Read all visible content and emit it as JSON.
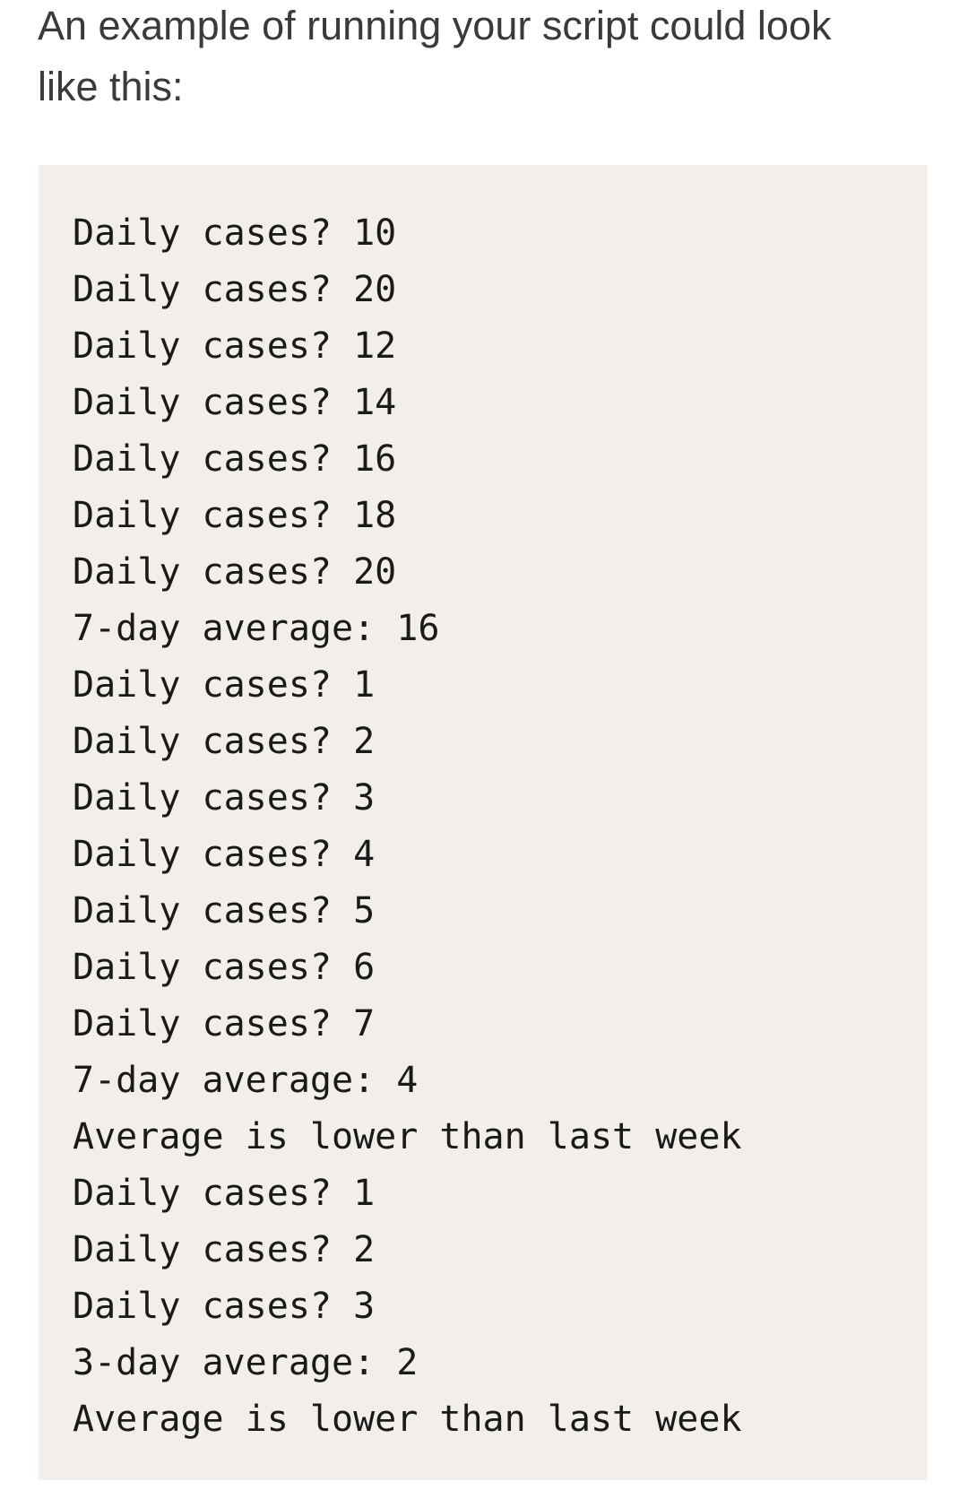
{
  "heading": {
    "text": "An example of running your script could look like this:"
  },
  "console": {
    "background": "#f2efea",
    "text_color": "#1a1a1a",
    "lines": [
      "Daily cases? 10",
      "Daily cases? 20",
      "Daily cases? 12",
      "Daily cases? 14",
      "Daily cases? 16",
      "Daily cases? 18",
      "Daily cases? 20",
      "7-day average: 16",
      "Daily cases? 1",
      "Daily cases? 2",
      "Daily cases? 3",
      "Daily cases? 4",
      "Daily cases? 5",
      "Daily cases? 6",
      "Daily cases? 7",
      "7-day average: 4",
      "Average is lower than last week",
      "Daily cases? 1",
      "Daily cases? 2",
      "Daily cases? 3",
      "3-day average: 2",
      "Average is lower than last week"
    ]
  }
}
